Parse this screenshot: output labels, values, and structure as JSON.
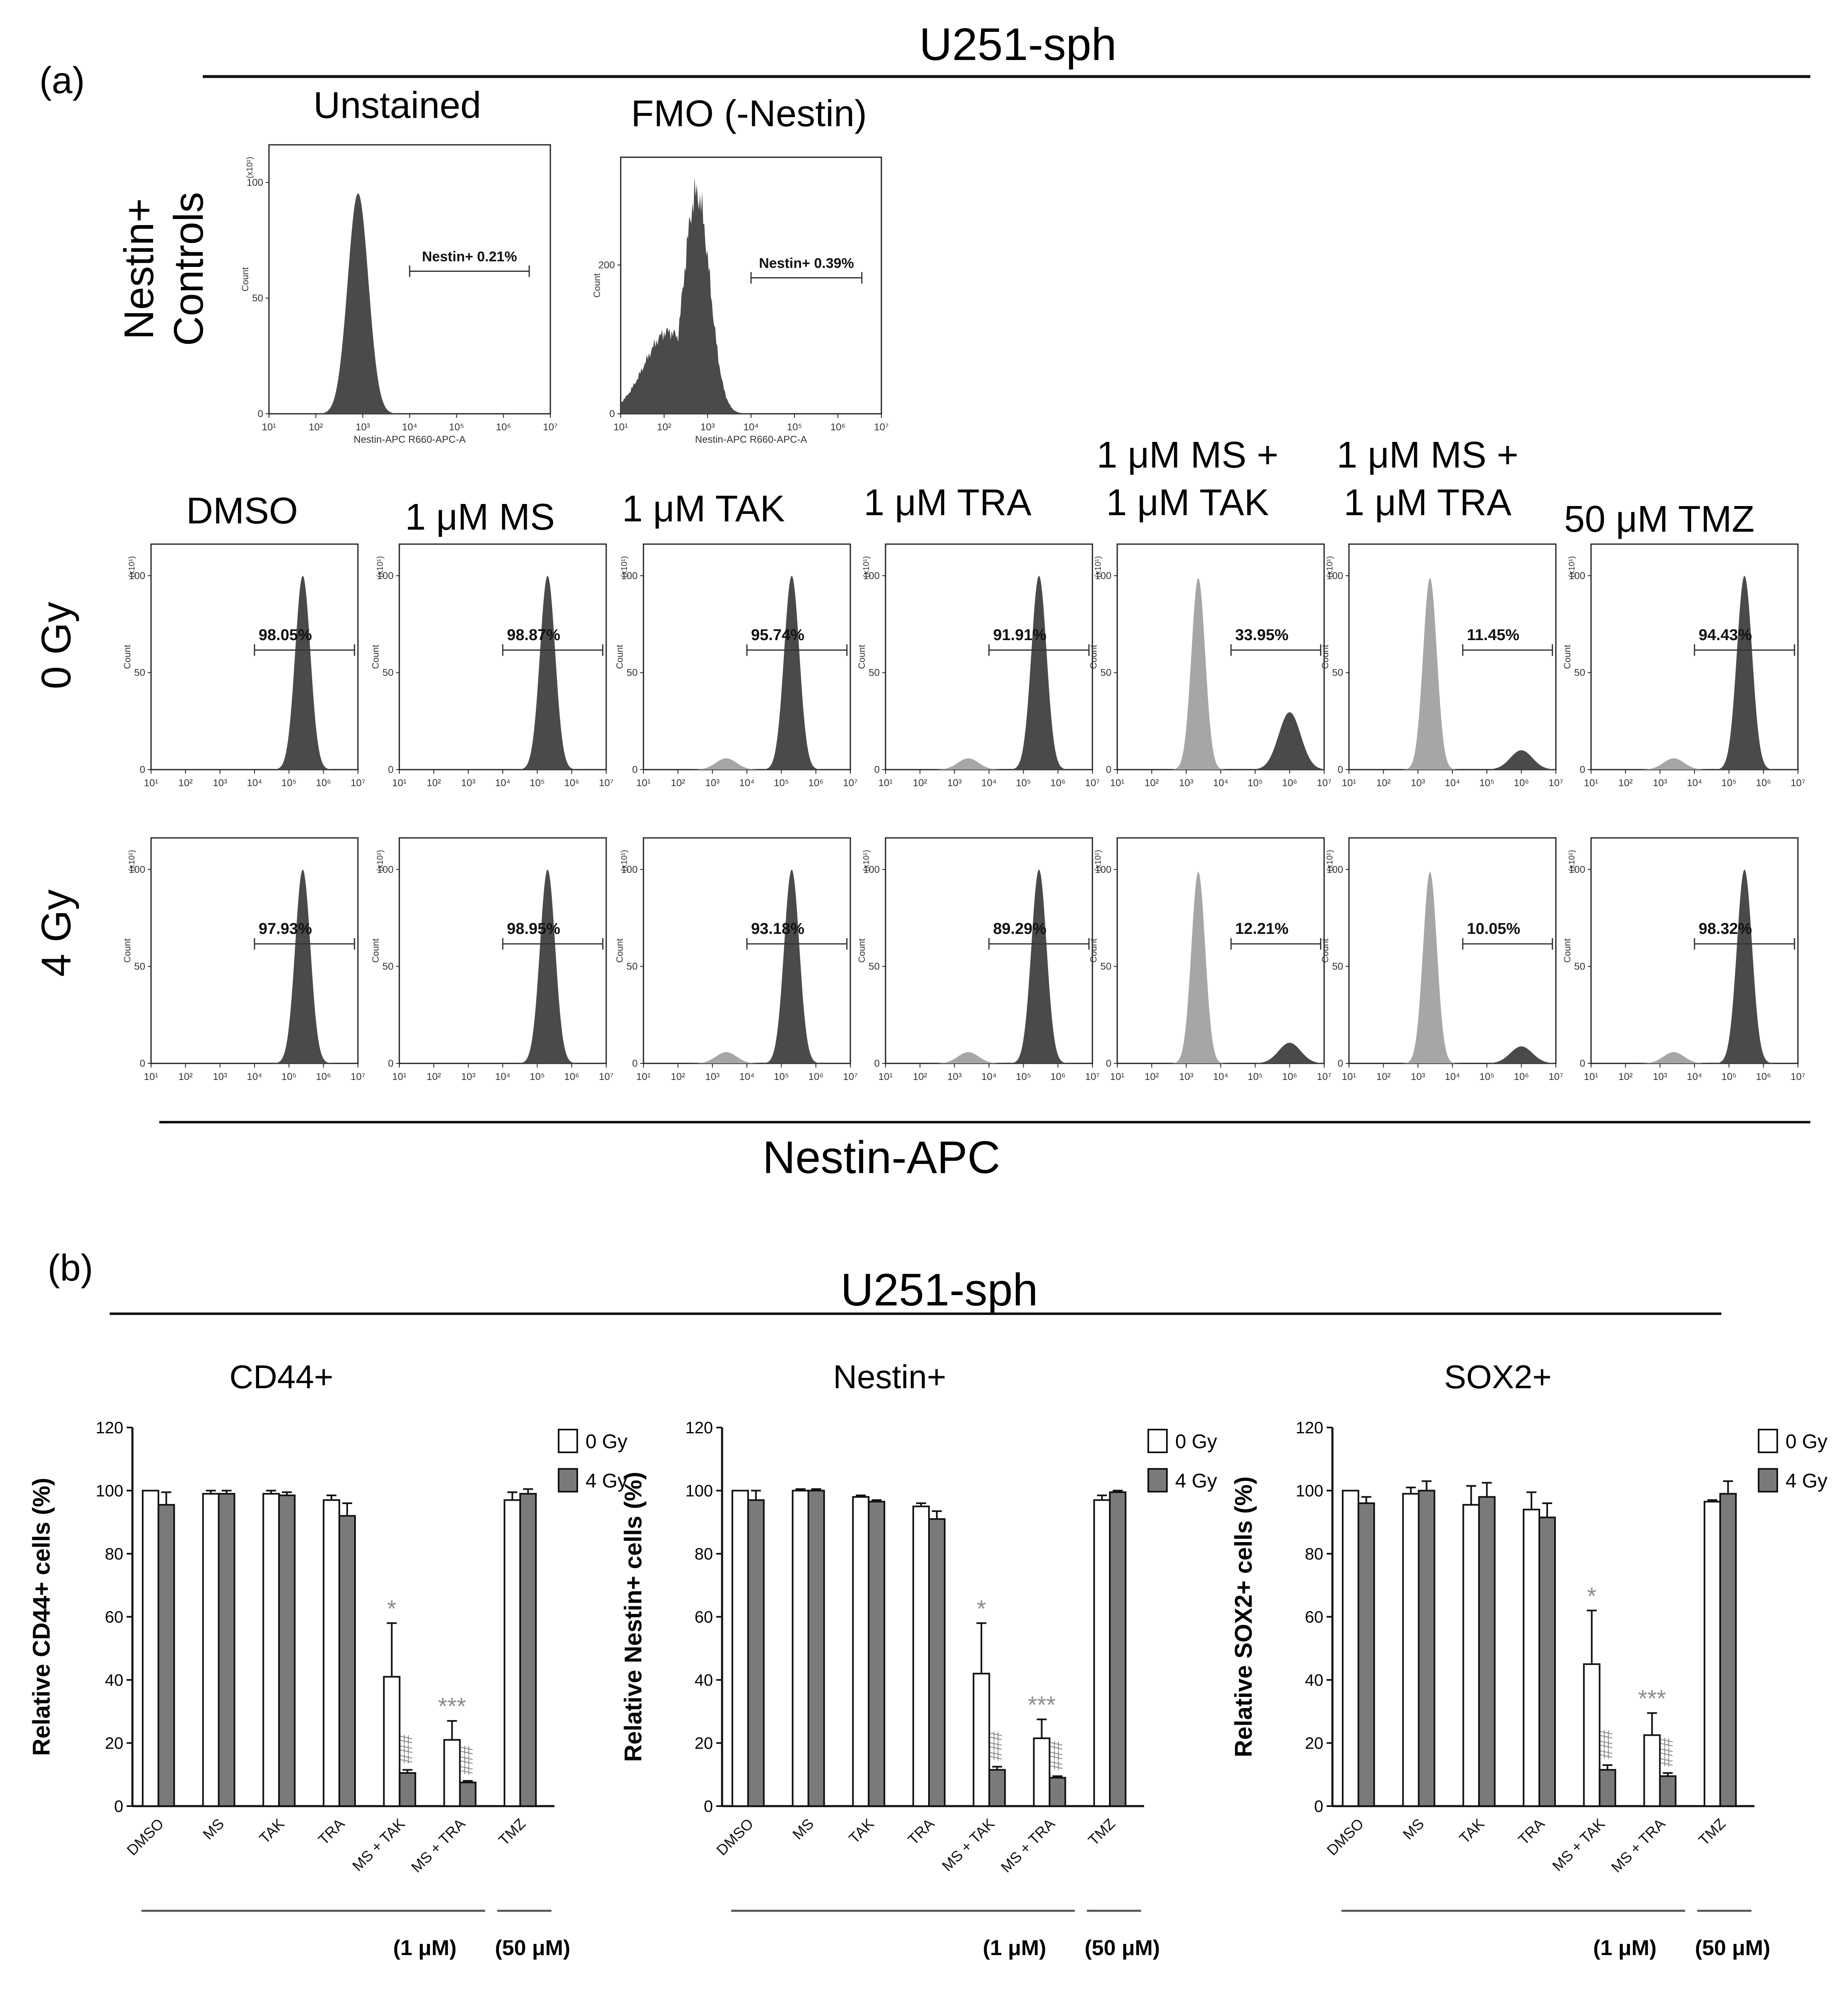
{
  "panel_a": {
    "label": "(a)",
    "cell_line": "U251-sph",
    "controls_row_label": "Nestin+ Controls",
    "controls": [
      {
        "title": "Unstained",
        "gate_label": "Nestin+ 0.21%",
        "y_scale": "(x10¹)",
        "y_ticks": [
          "0",
          "50",
          "100"
        ],
        "y_axis": "Count",
        "x_axis": "Nestin-APC R660-APC-A"
      },
      {
        "title": "FMO (-Nestin)",
        "gate_label": "Nestin+ 0.39%",
        "y_scale": "",
        "y_ticks": [
          "0",
          "200"
        ],
        "y_axis": "Count",
        "x_axis": "Nestin-APC R660-APC-A"
      }
    ],
    "x_ticks": [
      "10¹",
      "10²",
      "10³",
      "10⁴",
      "10⁵",
      "10⁶",
      "10⁷"
    ],
    "column_headers": [
      "DMSO",
      "1 μM MS",
      "1 μM TAK",
      "1 μM TRA",
      "1 μM MS + 1 μM TAK",
      "1 μM MS + 1 μM TRA",
      "50 μM TMZ"
    ],
    "row_labels": [
      "0 Gy",
      "4 Gy"
    ],
    "percent_0gy": [
      "98.05%",
      "98.87%",
      "95.74%",
      "91.91%",
      "33.95%",
      "11.45%",
      "94.43%"
    ],
    "percent_4gy": [
      "97.93%",
      "98.95%",
      "93.18%",
      "89.29%",
      "12.21%",
      "10.05%",
      "98.32%"
    ],
    "x_axis_label": "Nestin-APC"
  },
  "panel_b": {
    "label": "(b)",
    "cell_line": "U251-sph",
    "legend": [
      "0 Gy",
      "4 Gy"
    ],
    "bracket_labels": [
      "(1 μM)",
      "(50 μM)"
    ]
  },
  "colors": {
    "histogram_dark": "#4a4a4a",
    "histogram_light": "#a6a6a6",
    "bar_4gy": "#7a7a7a",
    "bar_0gy": "#ffffff",
    "annotation_grey": "#8c8c8c"
  },
  "chart_data": [
    {
      "type": "bar",
      "title": "CD44+",
      "ylabel": "Relative CD44+ cells (%)",
      "categories": [
        "DMSO",
        "MS",
        "TAK",
        "TRA",
        "MS + TAK",
        "MS + TRA",
        "TMZ"
      ],
      "ylim": [
        0,
        120
      ],
      "yticks": [
        0,
        20,
        40,
        60,
        80,
        100,
        120
      ],
      "series": [
        {
          "name": "0 Gy",
          "values": [
            100,
            99,
            99,
            97,
            41,
            21,
            97
          ],
          "errors": [
            0,
            1,
            1,
            1.5,
            17,
            6,
            2.5
          ]
        },
        {
          "name": "4 Gy",
          "values": [
            95.5,
            99,
            98.5,
            92,
            10.5,
            7.5,
            99
          ],
          "errors": [
            4,
            1,
            1,
            4,
            1,
            0.5,
            1.5
          ]
        }
      ],
      "annotations": {
        "0 Gy": [
          "",
          "",
          "",
          "",
          "*",
          "***",
          ""
        ],
        "4 Gy": [
          "",
          "",
          "",
          "",
          "###",
          "###",
          ""
        ]
      }
    },
    {
      "type": "bar",
      "title": "Nestin+",
      "ylabel": "Relative Nestin+ cells (%)",
      "categories": [
        "DMSO",
        "MS",
        "TAK",
        "TRA",
        "MS + TAK",
        "MS + TRA",
        "TMZ"
      ],
      "ylim": [
        0,
        120
      ],
      "yticks": [
        0,
        20,
        40,
        60,
        80,
        100,
        120
      ],
      "series": [
        {
          "name": "0 Gy",
          "values": [
            100,
            100,
            98,
            95,
            42,
            21.5,
            97
          ],
          "errors": [
            0,
            0.5,
            0.5,
            1,
            16,
            6,
            1.5
          ]
        },
        {
          "name": "4 Gy",
          "values": [
            97,
            100,
            96.5,
            91,
            11.5,
            9,
            99.5
          ],
          "errors": [
            3,
            0.5,
            0.5,
            2.5,
            1,
            0.5,
            0.5
          ]
        }
      ],
      "annotations": {
        "0 Gy": [
          "",
          "",
          "",
          "",
          "*",
          "***",
          ""
        ],
        "4 Gy": [
          "",
          "",
          "",
          "",
          "###",
          "###",
          ""
        ]
      }
    },
    {
      "type": "bar",
      "title": "SOX2+",
      "ylabel": "Relative SOX2+ cells (%)",
      "categories": [
        "DMSO",
        "MS",
        "TAK",
        "TRA",
        "MS + TAK",
        "MS + TRA",
        "TMZ"
      ],
      "ylim": [
        0,
        120
      ],
      "yticks": [
        0,
        20,
        40,
        60,
        80,
        100,
        120
      ],
      "series": [
        {
          "name": "0 Gy",
          "values": [
            100,
            99,
            95.5,
            94,
            45,
            22.5,
            96.5
          ],
          "errors": [
            0,
            2,
            6,
            5.5,
            17,
            7,
            0.5
          ]
        },
        {
          "name": "4 Gy",
          "values": [
            96,
            100,
            98,
            91.5,
            11.5,
            9.5,
            99
          ],
          "errors": [
            2,
            3,
            4.5,
            4.5,
            1.5,
            1,
            4
          ]
        }
      ],
      "annotations": {
        "0 Gy": [
          "",
          "",
          "",
          "",
          "*",
          "***",
          ""
        ],
        "4 Gy": [
          "",
          "",
          "",
          "",
          "###",
          "###",
          ""
        ]
      }
    }
  ]
}
